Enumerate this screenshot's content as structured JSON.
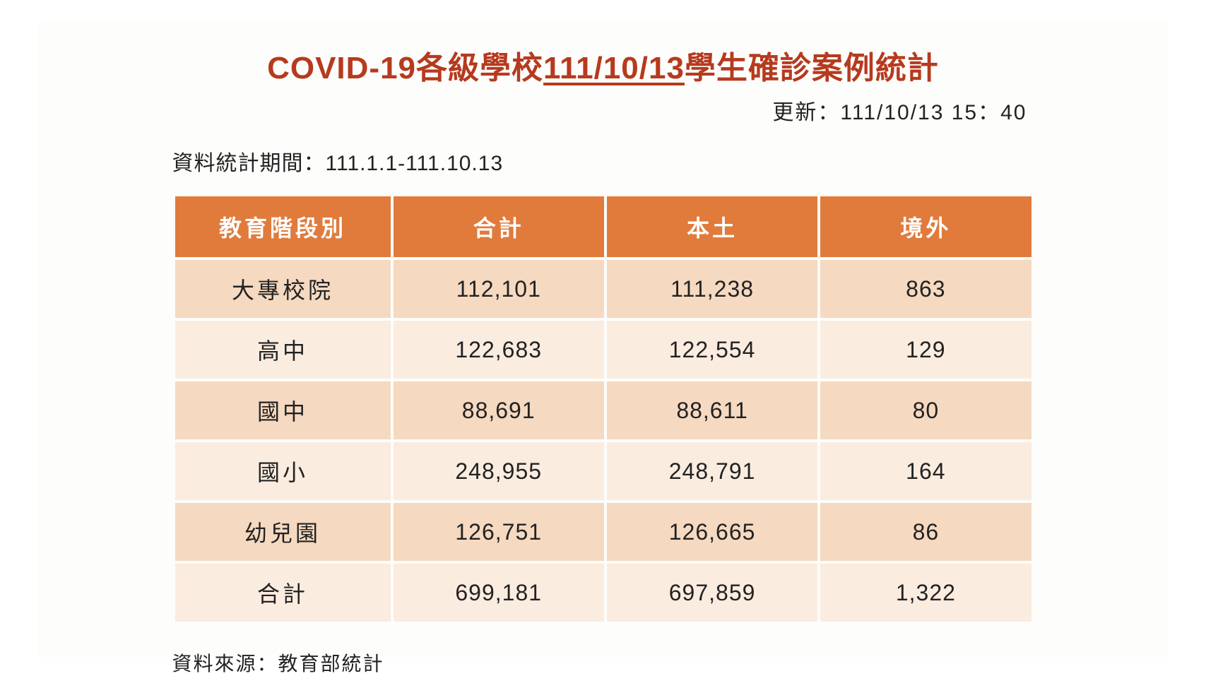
{
  "title_pre": "COVID-19各級學校",
  "title_date": "111/10/13",
  "title_post": "學生確診案例統計",
  "update_label": "更新：",
  "update_value": "111/10/13  15：40",
  "period_label": "資料統計期間：",
  "period_value": "111.1.1-111.10.13",
  "source_label": "資料來源：",
  "source_value": "教育部統計",
  "table": {
    "type": "table",
    "header_bg": "#e07b3c",
    "header_fg": "#ffffff",
    "row_odd_bg": "#f5d9c0",
    "row_even_bg": "#fbece0",
    "border_color": "#fdfdfb",
    "title_color": "#b63a1e",
    "body_text_color": "#222222",
    "header_fontsize": 32,
    "cell_fontsize": 32,
    "columns": [
      "教育階段別",
      "合計",
      "本土",
      "境外"
    ],
    "rows": [
      [
        "大專校院",
        "112,101",
        "111,238",
        "863"
      ],
      [
        "高中",
        "122,683",
        "122,554",
        "129"
      ],
      [
        "國中",
        "88,691",
        "88,611",
        "80"
      ],
      [
        "國小",
        "248,955",
        "248,791",
        "164"
      ],
      [
        "幼兒園",
        "126,751",
        "126,665",
        "86"
      ],
      [
        "合計",
        "699,181",
        "697,859",
        "1,322"
      ]
    ]
  }
}
